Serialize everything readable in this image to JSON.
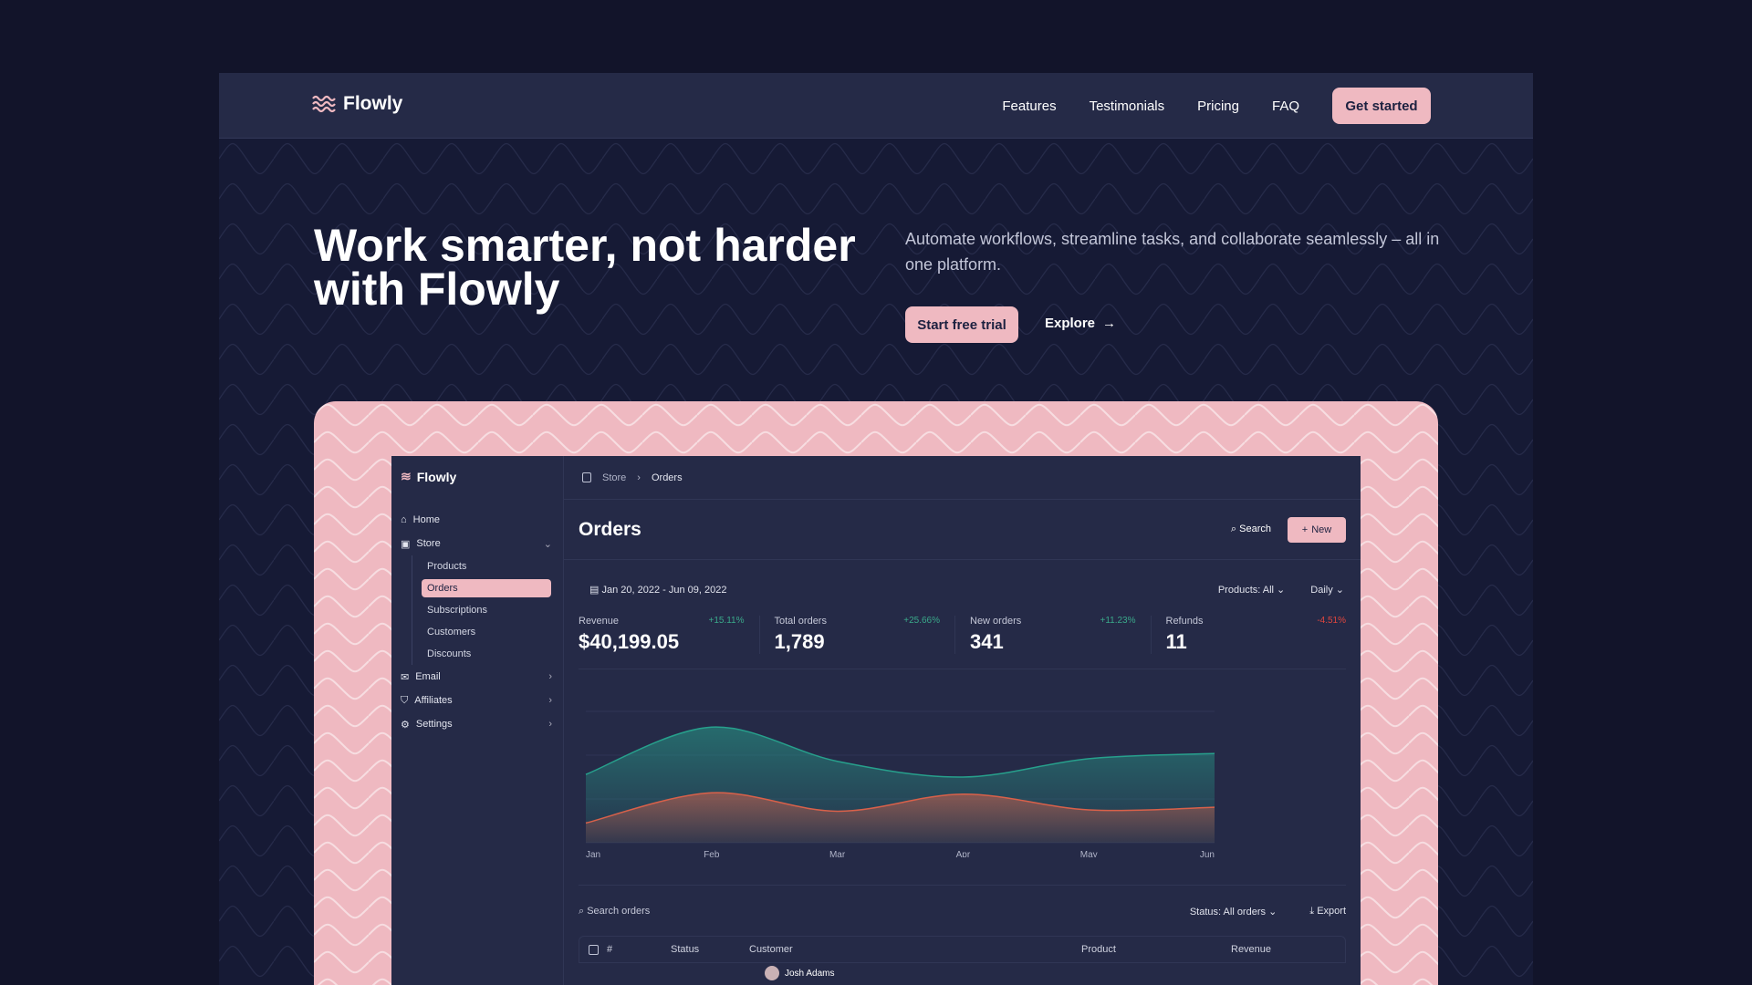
{
  "site": {
    "brand": "Flowly",
    "nav": [
      "Features",
      "Testimonials",
      "Pricing",
      "FAQ"
    ],
    "cta": "Get started"
  },
  "hero": {
    "title": "Work smarter, not harder with Flowly",
    "subtitle": "Automate workflows, streamline tasks, and collaborate seamlessly – all in one platform.",
    "primary": "Start free trial",
    "secondary": "Explore"
  },
  "colors": {
    "accent": "#efb9c1",
    "background": "#12142a",
    "panel": "#252a47",
    "positive": "#3aa98a",
    "negative": "#e0463e",
    "series_teal": "#27a08c",
    "series_orange": "#d9614a"
  },
  "app": {
    "brand": "Flowly",
    "sidebar": {
      "home": "Home",
      "store": "Store",
      "store_items": [
        "Products",
        "Orders",
        "Subscriptions",
        "Customers",
        "Discounts"
      ],
      "active": "Orders",
      "email": "Email",
      "affiliates": "Affiliates",
      "settings": "Settings"
    },
    "breadcrumb": [
      "Store",
      "Orders"
    ],
    "title": "Orders",
    "search": "Search",
    "new": "New",
    "date_range": "Jan 20, 2022 - Jun 09, 2022",
    "products_filter": "Products: All",
    "interval": "Daily",
    "stats": [
      {
        "label": "Revenue",
        "value": "$40,199.05",
        "change": "+15.11%",
        "trend": "up"
      },
      {
        "label": "Total orders",
        "value": "1,789",
        "change": "+25.66%",
        "trend": "up"
      },
      {
        "label": "New orders",
        "value": "341",
        "change": "+11.23%",
        "trend": "up"
      },
      {
        "label": "Refunds",
        "value": "11",
        "change": "-4.51%",
        "trend": "down"
      }
    ],
    "table": {
      "search_placeholder": "Search orders",
      "status_filter": "Status: All orders",
      "export": "Export",
      "columns": [
        "#",
        "Status",
        "Customer",
        "Product",
        "Revenue"
      ],
      "first_customer": "Josh Adams"
    }
  },
  "chart_data": {
    "type": "area",
    "categories": [
      "Jan",
      "Feb",
      "Mar",
      "Apr",
      "May",
      "Jun"
    ],
    "series": [
      {
        "values": [
          52,
          88,
          62,
          50,
          64,
          68
        ],
        "color": "#27a08c"
      },
      {
        "values": [
          15,
          38,
          24,
          37,
          25,
          27
        ],
        "color": "#d9614a"
      }
    ],
    "ylim": [
      0,
      100
    ],
    "grid": true,
    "smooth": true
  }
}
